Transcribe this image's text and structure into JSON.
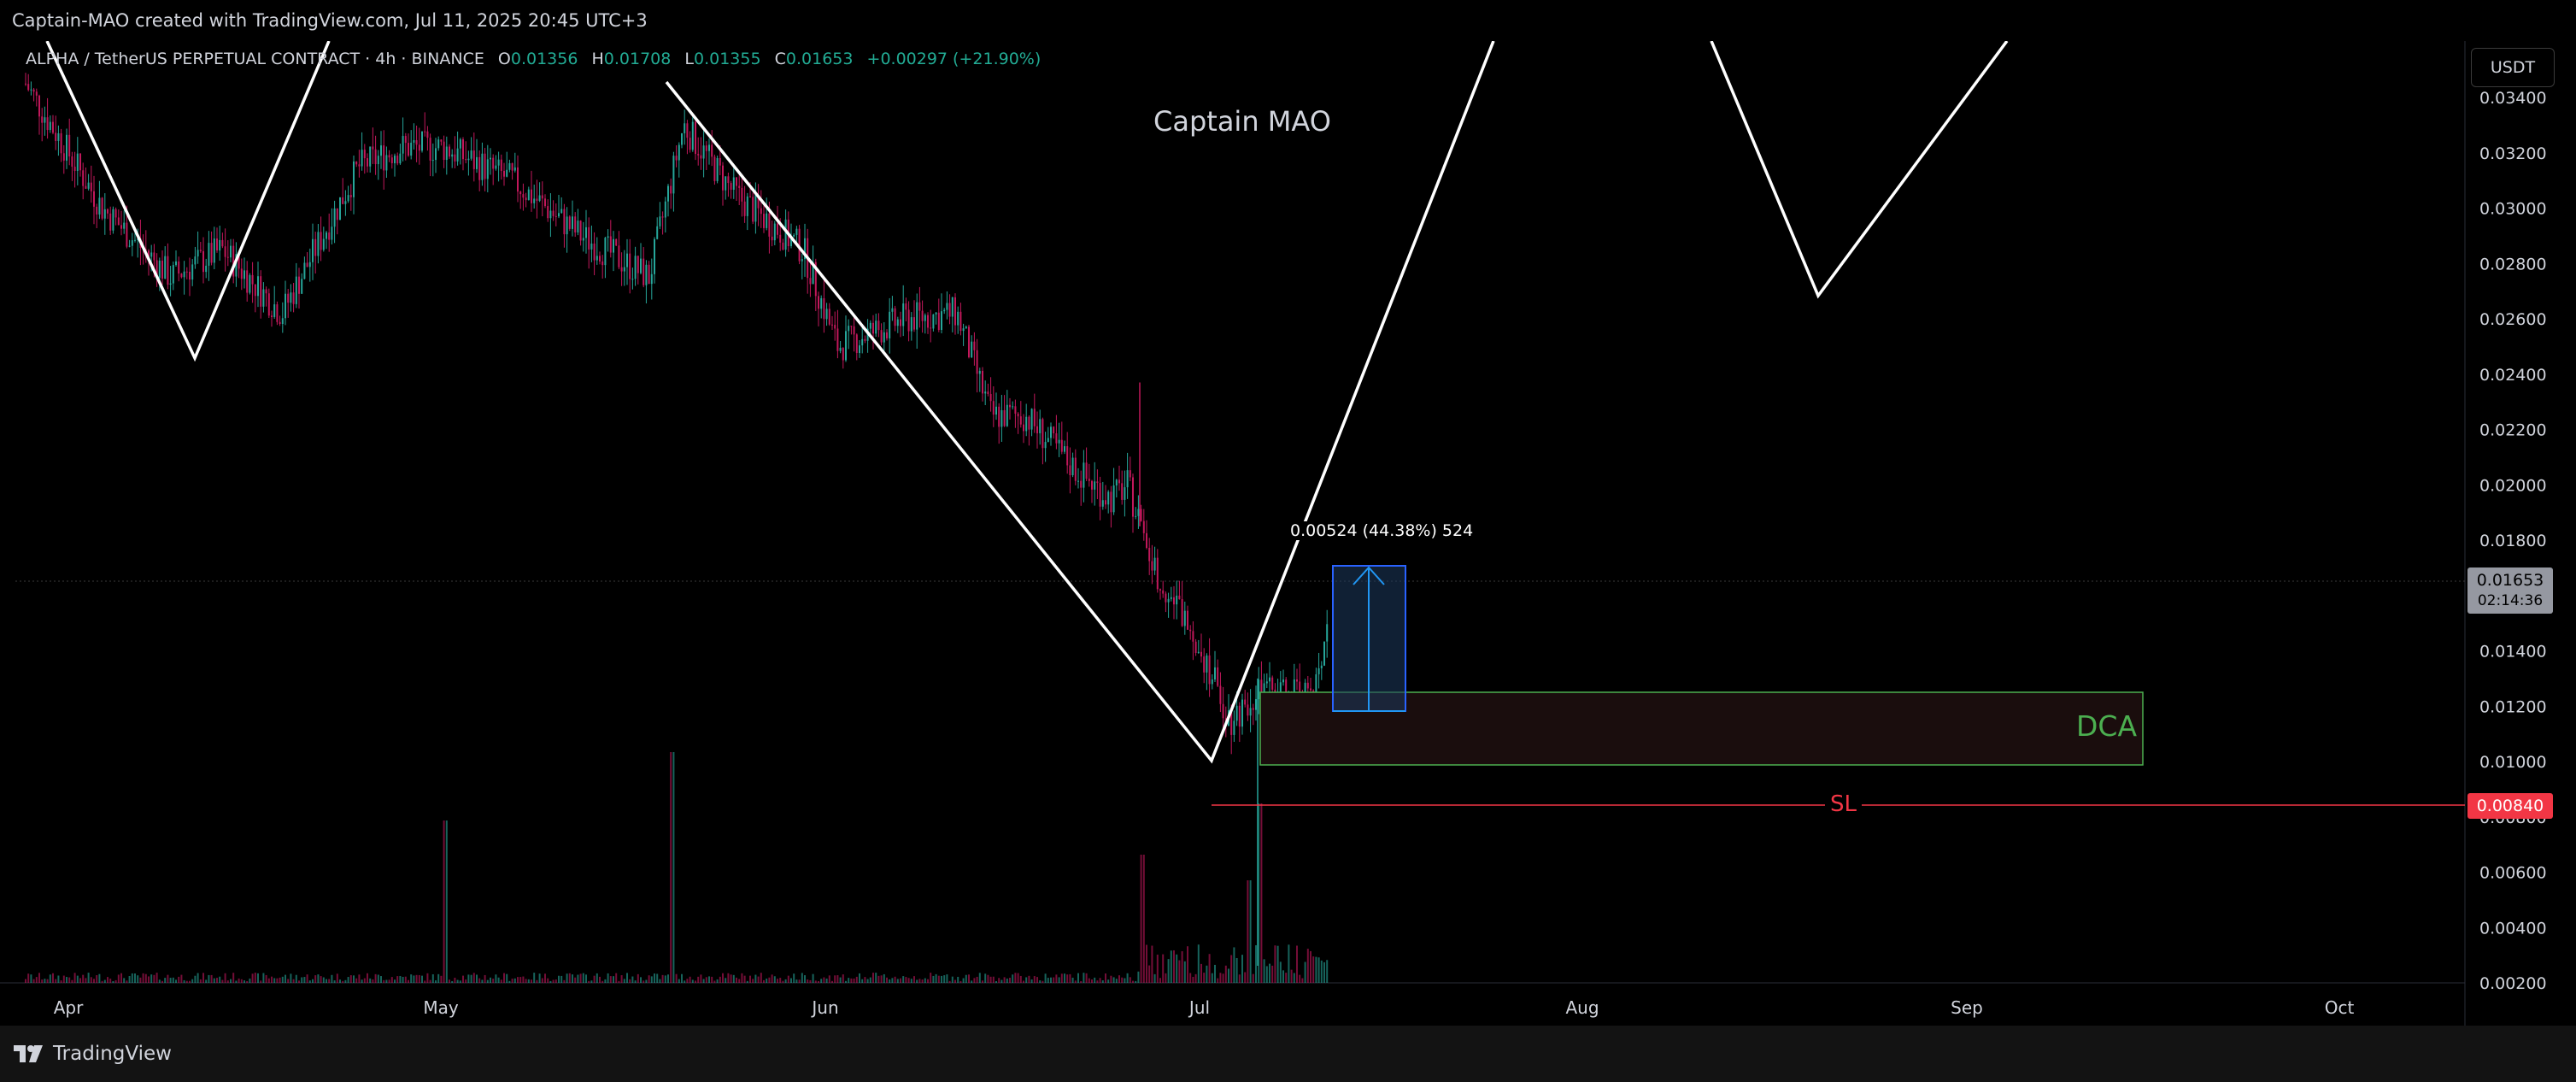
{
  "header": {
    "attribution": "Captain-MAO created with TradingView.com, Jul 11, 2025 20:45 UTC+3"
  },
  "legend": {
    "symbol": "ALPHA / TetherUS PERPETUAL CONTRACT · 4h · BINANCE",
    "o_label": "O",
    "o_value": "0.01356",
    "h_label": "H",
    "h_value": "0.01708",
    "l_label": "L",
    "l_value": "0.01355",
    "c_label": "C",
    "c_value": "0.01653",
    "change": "+0.00297 (+21.90%)"
  },
  "watermark": "Captain MAO",
  "currency_button": "USDT",
  "price_axis": {
    "ticks": [
      "0.03400",
      "0.03200",
      "0.03000",
      "0.02800",
      "0.02600",
      "0.02400",
      "0.02200",
      "0.02000",
      "0.01800",
      "0.01400",
      "0.01200",
      "0.01000",
      "0.00800",
      "0.00600",
      "0.00400",
      "0.00200"
    ],
    "last_price": "0.01653",
    "countdown": "02:14:36",
    "sl_price": "0.00840"
  },
  "time_axis": {
    "ticks": [
      "Apr",
      "May",
      "Jun",
      "Jul",
      "Aug",
      "Sep",
      "Oct"
    ]
  },
  "drawings": {
    "measure_label": "0.00524 (44.38%) 524",
    "dca_label": "DCA",
    "sl_label": "SL"
  },
  "footer": {
    "brand": "TradingView"
  },
  "colors": {
    "up": "#22ab94",
    "down": "#f23645",
    "candle_up": "#26a69a",
    "candle_down": "#c2185b",
    "background": "#000000",
    "measure": "#2962ff",
    "dca_border": "#4caf50"
  }
}
